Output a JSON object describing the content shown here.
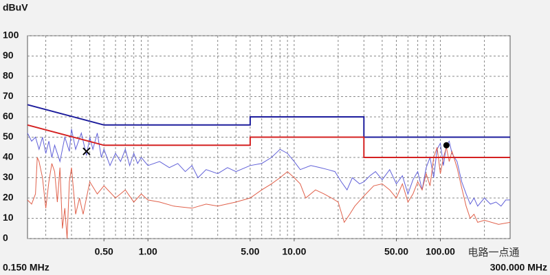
{
  "chart_data": {
    "type": "line",
    "y_label": "dBuV",
    "xmin_label": "0.150 MHz",
    "xmax_label": "300.000 MHz",
    "watermark": "电路一点通",
    "xlog": true,
    "grid": true,
    "minor_grid": true,
    "xlim": [
      0.15,
      300
    ],
    "ylim": [
      0,
      100
    ],
    "yticks": [
      0,
      10,
      20,
      30,
      40,
      50,
      60,
      70,
      80,
      90,
      100
    ],
    "xticks": [
      {
        "value": 0.5,
        "label": "0.50"
      },
      {
        "value": 1,
        "label": "1.00"
      },
      {
        "value": 5,
        "label": "5.00"
      },
      {
        "value": 10,
        "label": "10.00"
      },
      {
        "value": 50,
        "label": "50.00"
      },
      {
        "value": 100,
        "label": "100.00"
      }
    ],
    "series": [
      {
        "color": "#6060d8",
        "width": 1,
        "x": [
          0.15,
          0.16,
          0.17,
          0.18,
          0.19,
          0.2,
          0.21,
          0.22,
          0.23,
          0.25,
          0.27,
          0.29,
          0.3,
          0.32,
          0.35,
          0.38,
          0.4,
          0.42,
          0.45,
          0.48,
          0.5,
          0.55,
          0.6,
          0.65,
          0.7,
          0.75,
          0.8,
          0.85,
          0.9,
          1.0,
          1.2,
          1.4,
          1.6,
          1.8,
          2.0,
          2.2,
          2.5,
          3.0,
          3.5,
          4,
          5,
          6,
          7,
          8,
          9,
          10,
          11,
          13,
          15,
          17,
          19,
          21,
          23,
          25,
          28,
          30,
          33,
          36,
          40,
          45,
          50,
          55,
          60,
          65,
          70,
          75,
          80,
          85,
          90,
          95,
          100,
          105,
          110,
          115,
          120,
          130,
          140,
          150,
          160,
          170,
          180,
          200,
          220,
          240,
          260,
          280,
          300
        ],
        "values": [
          52,
          48,
          50,
          44,
          50,
          42,
          48,
          40,
          46,
          38,
          50,
          43,
          54,
          44,
          52,
          41,
          50,
          44,
          52,
          40,
          44,
          36,
          42,
          38,
          44,
          36,
          42,
          37,
          40,
          36,
          38,
          35,
          37,
          33,
          36,
          30,
          34,
          32,
          35,
          33,
          36,
          37,
          40,
          44,
          42,
          38,
          34,
          36,
          35,
          34,
          33,
          28,
          24,
          30,
          27,
          28,
          31,
          33,
          29,
          34,
          27,
          31,
          22,
          29,
          33,
          24,
          35,
          40,
          30,
          44,
          47,
          36,
          46,
          48,
          42,
          38,
          28,
          22,
          17,
          20,
          16,
          20,
          17,
          18,
          16,
          19,
          19
        ]
      },
      {
        "color": "#e0604a",
        "width": 1,
        "x": [
          0.15,
          0.16,
          0.17,
          0.175,
          0.18,
          0.19,
          0.2,
          0.21,
          0.22,
          0.23,
          0.24,
          0.25,
          0.26,
          0.27,
          0.28,
          0.29,
          0.3,
          0.32,
          0.34,
          0.36,
          0.4,
          0.45,
          0.5,
          0.6,
          0.7,
          0.8,
          0.9,
          1.0,
          1.2,
          1.5,
          2,
          2.5,
          3,
          4,
          5,
          6,
          7,
          8,
          9,
          10,
          11,
          12,
          14,
          16,
          18,
          20,
          22,
          24,
          26,
          30,
          35,
          40,
          45,
          50,
          55,
          60,
          65,
          70,
          75,
          80,
          85,
          90,
          95,
          100,
          105,
          110,
          115,
          120,
          130,
          140,
          150,
          160,
          170,
          180,
          200,
          250,
          300
        ],
        "values": [
          19,
          17,
          22,
          40,
          38,
          30,
          15,
          28,
          37,
          33,
          18,
          35,
          5,
          15,
          0,
          28,
          35,
          12,
          20,
          12,
          28,
          22,
          26,
          20,
          24,
          18,
          22,
          19,
          18,
          16,
          15,
          17,
          16,
          18,
          20,
          24,
          27,
          30,
          33,
          30,
          27,
          20,
          24,
          22,
          20,
          18,
          8,
          12,
          16,
          21,
          26,
          27,
          24,
          20,
          27,
          18,
          22,
          28,
          24,
          32,
          26,
          40,
          45,
          32,
          40,
          45,
          38,
          43,
          35,
          25,
          16,
          10,
          12,
          8,
          9,
          7,
          8
        ]
      },
      {
        "color": "#1c1c9c",
        "width": 2,
        "x": [
          0.15,
          0.5,
          5,
          5,
          30,
          30,
          300
        ],
        "values": [
          66,
          56,
          56,
          60,
          60,
          50,
          50
        ]
      },
      {
        "color": "#d42020",
        "width": 2,
        "x": [
          0.15,
          0.5,
          5,
          5,
          30,
          30,
          300
        ],
        "values": [
          56,
          46,
          46,
          50,
          50,
          40,
          40
        ]
      }
    ],
    "markers": [
      {
        "x": 0.38,
        "value": 43,
        "symbol": "x"
      },
      {
        "x": 110,
        "value": 46,
        "symbol": "dot"
      }
    ]
  }
}
